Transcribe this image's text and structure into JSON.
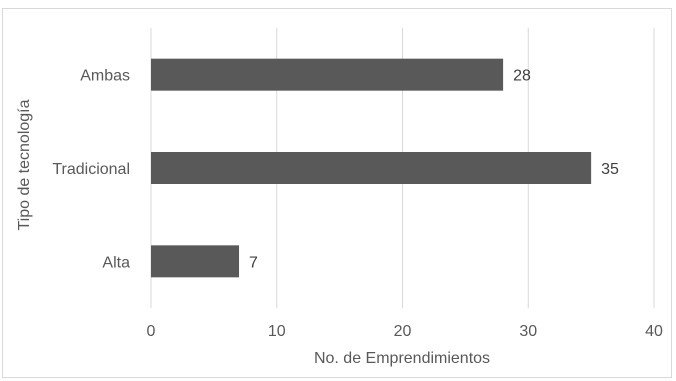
{
  "chart_data": {
    "type": "bar",
    "orientation": "horizontal",
    "categories": [
      "Ambas",
      "Tradicional",
      "Alta"
    ],
    "values": [
      28,
      35,
      7
    ],
    "data_labels": [
      "28",
      "35",
      "7"
    ],
    "xlabel": "No. de Emprendimientos",
    "ylabel": "Tipo de tecnología",
    "xlim": [
      0,
      40
    ],
    "x_ticks": [
      "0",
      "10",
      "20",
      "30",
      "40"
    ],
    "grid": true,
    "legend": "none",
    "bar_color": "#595959"
  }
}
